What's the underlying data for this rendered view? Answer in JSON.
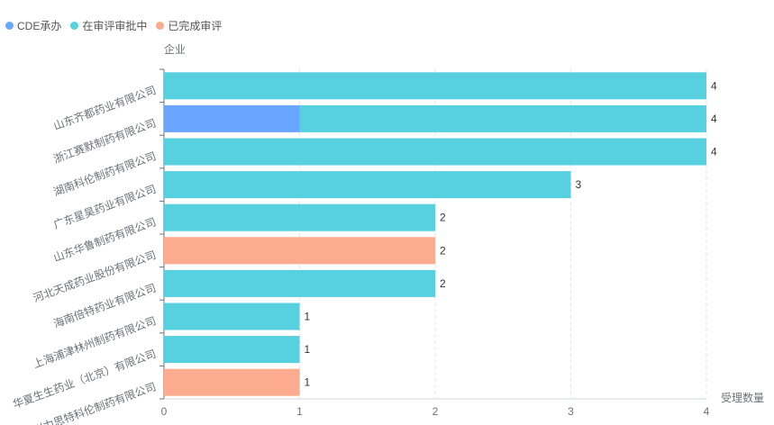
{
  "chart_data": {
    "type": "bar",
    "orientation": "horizontal",
    "stacked": true,
    "ylabel": "企业",
    "xlabel": "受理数量",
    "xlim": [
      0,
      4
    ],
    "xticks": [
      "0",
      "1",
      "2",
      "3",
      "4"
    ],
    "grid": true,
    "legend_position": "top-left",
    "categories": [
      "山东齐都药业有限公司",
      "浙江赛默制药有限公司",
      "湖南科伦制药有限公司",
      "广东星昊药业有限公司",
      "山东华鲁制药有限公司",
      "河北天成药业股份有限公司",
      "海南倍特药业有限公司",
      "上海浦津林州制药有限公司",
      "华夏生生药业（北京）有限公司",
      "四川力思特科伦制药有限公司"
    ],
    "series": [
      {
        "name": "CDE承办",
        "color": "#6aa6ff",
        "values": [
          0,
          1,
          0,
          0,
          0,
          0,
          0,
          0,
          0,
          0
        ]
      },
      {
        "name": "在审评审批中",
        "color": "#57d0e0",
        "values": [
          4,
          3,
          4,
          3,
          2,
          0,
          2,
          1,
          1,
          0
        ]
      },
      {
        "name": "已完成审评",
        "color": "#fcab8e",
        "values": [
          0,
          0,
          0,
          0,
          0,
          2,
          0,
          0,
          0,
          1
        ]
      }
    ],
    "totals": [
      "4",
      "4",
      "4",
      "3",
      "2",
      "2",
      "2",
      "1",
      "1",
      "1"
    ]
  }
}
